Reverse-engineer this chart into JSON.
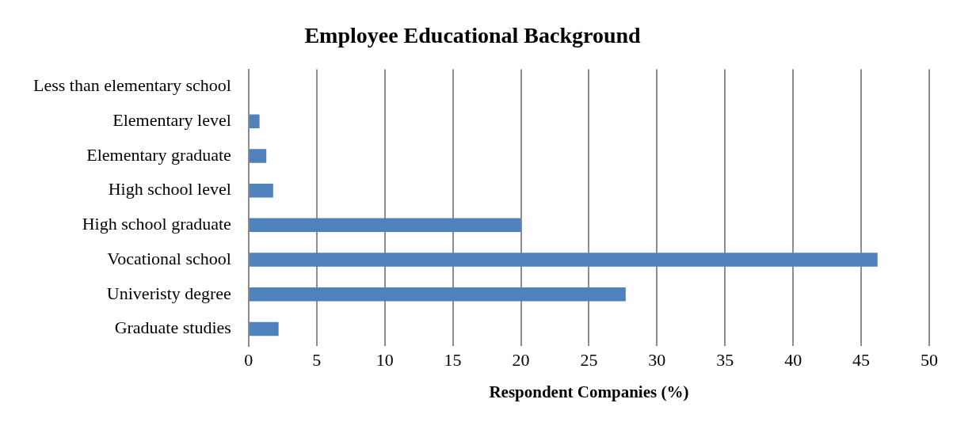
{
  "chart_data": {
    "type": "bar",
    "orientation": "horizontal",
    "title": "Employee Educational Background",
    "xlabel": "Respondent Companies (%)",
    "categories": [
      "Less than elementary school",
      "Elementary level",
      "Elementary graduate",
      "High school level",
      "High school graduate",
      "Vocational school",
      "Univeristy degree",
      "Graduate studies"
    ],
    "values": [
      0,
      0.8,
      1.3,
      1.8,
      20,
      46.2,
      27.7,
      2.2
    ],
    "color": "#4f81bd",
    "xlim": [
      0,
      50
    ],
    "xticks": [
      0,
      5,
      10,
      15,
      20,
      25,
      30,
      35,
      40,
      45,
      50
    ],
    "grid": "x",
    "legend": false
  }
}
